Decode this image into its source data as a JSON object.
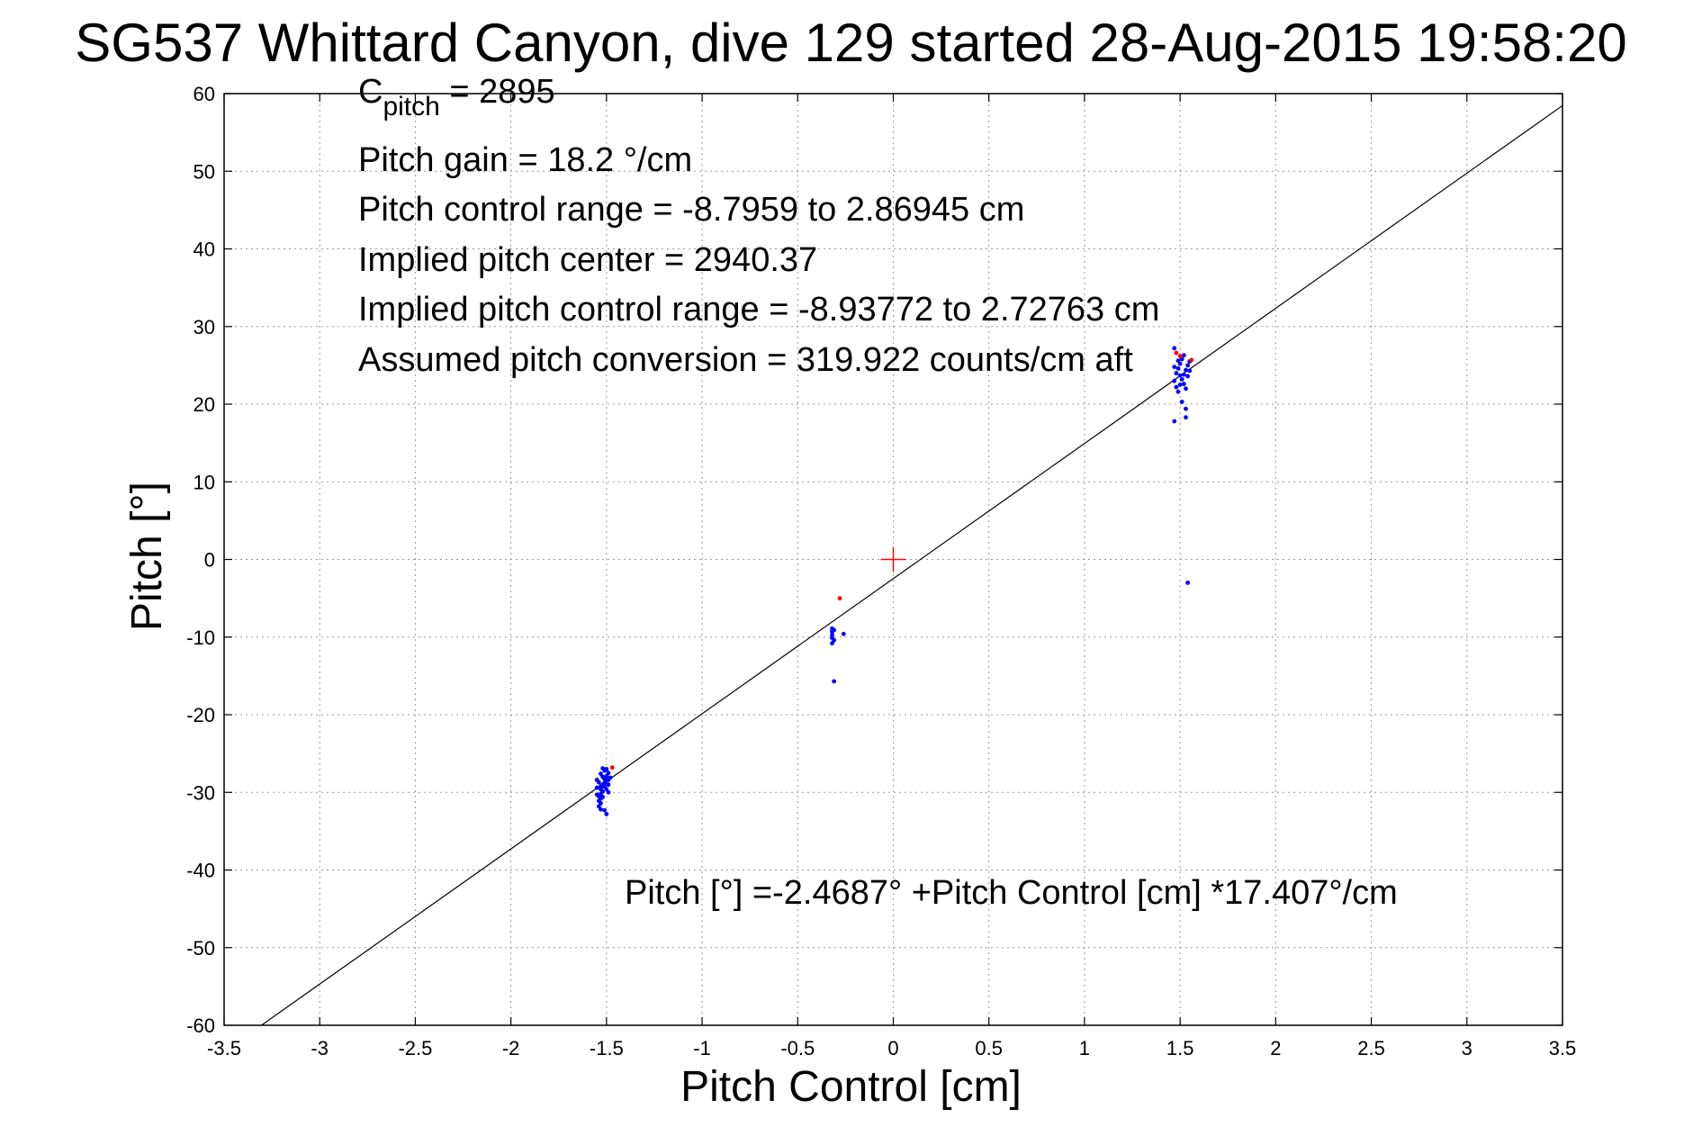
{
  "chart_data": {
    "type": "scatter",
    "title": "SG537 Whittard Canyon, dive 129 started 28-Aug-2015 19:58:20",
    "xlabel": "Pitch Control [cm]",
    "ylabel": "Pitch [°]",
    "xlim": [
      -3.5,
      3.5
    ],
    "ylim": [
      -60,
      60
    ],
    "xticks": [
      -3.5,
      -3,
      -2.5,
      -2,
      -1.5,
      -1,
      -0.5,
      0,
      0.5,
      1,
      1.5,
      2,
      2.5,
      3,
      3.5
    ],
    "yticks": [
      -60,
      -50,
      -40,
      -30,
      -20,
      -10,
      0,
      10,
      20,
      30,
      40,
      50,
      60
    ],
    "xtick_labels": [
      "-3.5",
      "-3",
      "-2.5",
      "-2",
      "-1.5",
      "-1",
      "-0.5",
      "0",
      "0.5",
      "1",
      "1.5",
      "2",
      "2.5",
      "3",
      "3.5"
    ],
    "ytick_labels": [
      "-60",
      "-50",
      "-40",
      "-30",
      "-20",
      "-10",
      "0",
      "10",
      "20",
      "30",
      "40",
      "50",
      "60"
    ],
    "grid": true,
    "annotations": {
      "c_pitch_prefix": "C",
      "c_pitch_sub": "pitch",
      "c_pitch_value": " = 2895",
      "pitch_gain": "Pitch gain = 18.2 °/cm",
      "pitch_control_range": "Pitch control range = -8.7959 to 2.86945 cm",
      "implied_pitch_center": "Implied pitch center = 2940.37",
      "implied_control_range": "Implied pitch control range = -8.93772 to 2.72763 cm",
      "assumed_conversion": "Assumed pitch conversion = 319.922 counts/cm aft",
      "fit_equation": "Pitch [°] =-2.4687° +Pitch Control [cm] *17.407°/cm"
    },
    "fit_line": {
      "intercept": -2.4687,
      "slope": 17.407,
      "color": "#000000"
    },
    "center_marker": {
      "x": 0,
      "y": 0,
      "color": "#ff0000"
    },
    "series": [
      {
        "color": "#0000ff",
        "points": [
          [
            -1.53,
            -27.6
          ],
          [
            -1.52,
            -28.0
          ],
          [
            -1.51,
            -28.3
          ],
          [
            -1.5,
            -27.9
          ],
          [
            -1.49,
            -28.4
          ],
          [
            -1.54,
            -28.7
          ],
          [
            -1.52,
            -29.0
          ],
          [
            -1.51,
            -29.3
          ],
          [
            -1.53,
            -29.6
          ],
          [
            -1.52,
            -29.9
          ],
          [
            -1.53,
            -30.2
          ],
          [
            -1.54,
            -30.5
          ],
          [
            -1.53,
            -30.8
          ],
          [
            -1.54,
            -31.1
          ],
          [
            -1.53,
            -31.4
          ],
          [
            -1.54,
            -31.8
          ],
          [
            -1.53,
            -32.2
          ],
          [
            -1.51,
            -32.3
          ],
          [
            -1.5,
            -32.8
          ],
          [
            -1.5,
            -28.5
          ],
          [
            -1.49,
            -29.0
          ],
          [
            -1.51,
            -27.2
          ],
          [
            -1.52,
            -26.9
          ],
          [
            -1.5,
            -27.0
          ],
          [
            -1.49,
            -27.5
          ],
          [
            -1.48,
            -28.1
          ],
          [
            -1.51,
            -28.8
          ],
          [
            -1.5,
            -29.6
          ],
          [
            -1.52,
            -30.6
          ],
          [
            -1.53,
            -29.2
          ],
          [
            -1.55,
            -28.4
          ],
          [
            -1.55,
            -29.4
          ],
          [
            -1.55,
            -30.3
          ],
          [
            -1.49,
            -30.0
          ],
          [
            -0.32,
            -8.9
          ],
          [
            -0.32,
            -9.3
          ],
          [
            -0.32,
            -9.7
          ],
          [
            -0.32,
            -10.1
          ],
          [
            -0.31,
            -10.4
          ],
          [
            -0.32,
            -10.8
          ],
          [
            -0.31,
            -9.1
          ],
          [
            -0.26,
            -9.6
          ],
          [
            -0.31,
            -15.7
          ],
          [
            1.47,
            23.0
          ],
          [
            1.48,
            22.2
          ],
          [
            1.49,
            21.6
          ],
          [
            1.5,
            22.5
          ],
          [
            1.51,
            23.2
          ],
          [
            1.52,
            23.8
          ],
          [
            1.53,
            24.4
          ],
          [
            1.54,
            25.0
          ],
          [
            1.55,
            25.5
          ],
          [
            1.48,
            24.0
          ],
          [
            1.49,
            24.6
          ],
          [
            1.5,
            25.2
          ],
          [
            1.51,
            25.8
          ],
          [
            1.52,
            26.3
          ],
          [
            1.53,
            22.0
          ],
          [
            1.54,
            23.6
          ],
          [
            1.47,
            24.8
          ],
          [
            1.5,
            23.7
          ],
          [
            1.52,
            22.6
          ],
          [
            1.55,
            24.3
          ],
          [
            1.49,
            25.6
          ],
          [
            1.47,
            27.2
          ],
          [
            1.53,
            19.4
          ],
          [
            1.53,
            18.3
          ],
          [
            1.51,
            20.3
          ],
          [
            1.47,
            17.8
          ],
          [
            1.54,
            -3.0
          ]
        ]
      },
      {
        "color": "#ff0000",
        "points": [
          [
            -1.47,
            -26.8
          ],
          [
            -0.28,
            -5.0
          ],
          [
            1.48,
            26.6
          ],
          [
            1.5,
            26.2
          ],
          [
            1.56,
            25.7
          ]
        ]
      }
    ]
  }
}
